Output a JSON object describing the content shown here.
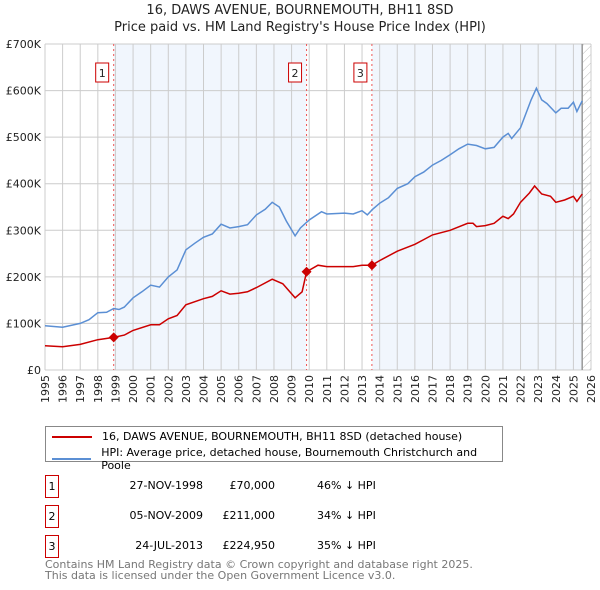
{
  "chart_data": {
    "type": "line",
    "title": "16, DAWS AVENUE, BOURNEMOUTH, BH11 8SD",
    "subtitle": "Price paid vs. HM Land Registry's House Price Index (HPI)",
    "xlim": [
      1995,
      2026
    ],
    "ylim": [
      0,
      700000
    ],
    "x_ticks": [
      "1995",
      "1996",
      "1997",
      "1998",
      "1999",
      "2000",
      "2001",
      "2002",
      "2003",
      "2004",
      "2005",
      "2006",
      "2007",
      "2008",
      "2009",
      "2010",
      "2011",
      "2012",
      "2013",
      "2014",
      "2015",
      "2016",
      "2017",
      "2018",
      "2019",
      "2020",
      "2021",
      "2022",
      "2023",
      "2024",
      "2025",
      "2026"
    ],
    "y_ticks": [
      {
        "v": 0,
        "label": "£0"
      },
      {
        "v": 100000,
        "label": "£100K"
      },
      {
        "v": 200000,
        "label": "£200K"
      },
      {
        "v": 300000,
        "label": "£300K"
      },
      {
        "v": 400000,
        "label": "£400K"
      },
      {
        "v": 500000,
        "label": "£500K"
      },
      {
        "v": 600000,
        "label": "£600K"
      },
      {
        "v": 700000,
        "label": "£700K"
      }
    ],
    "grid": true,
    "forecast_start": 2025.5,
    "series": [
      {
        "name": "16, DAWS AVENUE, BOURNEMOUTH, BH11 8SD (detached house)",
        "color": "#cc0000",
        "x": [
          1995,
          1996,
          1997,
          1998,
          1998.9,
          1999.5,
          2000,
          2001,
          2001.5,
          2002,
          2002.5,
          2003,
          2004,
          2004.5,
          2005,
          2005.5,
          2006,
          2006.5,
          2007,
          2007.9,
          2008.5,
          2009.2,
          2009.6,
          2009.85,
          2010.5,
          2011,
          2012,
          2012.5,
          2013,
          2013.56,
          2014,
          2015,
          2016,
          2016.5,
          2017,
          2018,
          2019,
          2019.3,
          2019.5,
          2020,
          2020.5,
          2021,
          2021.3,
          2021.6,
          2022,
          2022.5,
          2022.8,
          2023.2,
          2023.7,
          2024,
          2024.5,
          2025,
          2025.2,
          2025.5
        ],
        "y": [
          52000,
          50000,
          55000,
          65000,
          70000,
          75000,
          85000,
          97000,
          97000,
          110000,
          117000,
          140000,
          153000,
          158000,
          170000,
          163000,
          165000,
          168000,
          177000,
          195000,
          185000,
          155000,
          168000,
          211000,
          225000,
          222000,
          222000,
          222000,
          225000,
          224950,
          235000,
          255000,
          270000,
          280000,
          290000,
          300000,
          315000,
          315000,
          308000,
          310000,
          315000,
          330000,
          325000,
          335000,
          360000,
          380000,
          395000,
          378000,
          373000,
          360000,
          365000,
          373000,
          362000,
          378000
        ]
      },
      {
        "name": "HPI: Average price, detached house, Bournemouth Christchurch and Poole",
        "color": "#5b8fd4",
        "x": [
          1995,
          1996,
          1997,
          1997.5,
          1998,
          1998.5,
          1998.9,
          1999.2,
          1999.5,
          2000,
          2000.5,
          2001,
          2001.5,
          2002,
          2002.5,
          2003,
          2003.5,
          2004,
          2004.5,
          2005,
          2005.5,
          2006,
          2006.5,
          2007,
          2007.5,
          2007.9,
          2008.3,
          2008.7,
          2009.2,
          2009.5,
          2010,
          2010.7,
          2011,
          2012,
          2012.5,
          2013,
          2013.3,
          2013.6,
          2014,
          2014.5,
          2015,
          2015.6,
          2016,
          2016.5,
          2017,
          2017.5,
          2018,
          2018.5,
          2019,
          2019.5,
          2020,
          2020.5,
          2021,
          2021.3,
          2021.5,
          2022,
          2022.3,
          2022.6,
          2022.9,
          2023.2,
          2023.5,
          2024,
          2024.3,
          2024.7,
          2025,
          2025.2,
          2025.5
        ],
        "y": [
          95000,
          92000,
          100000,
          108000,
          123000,
          124000,
          132000,
          130000,
          135000,
          155000,
          168000,
          182000,
          178000,
          200000,
          215000,
          258000,
          272000,
          285000,
          292000,
          313000,
          305000,
          308000,
          312000,
          333000,
          345000,
          360000,
          350000,
          320000,
          288000,
          305000,
          322000,
          340000,
          335000,
          337000,
          335000,
          342000,
          333000,
          345000,
          358000,
          370000,
          390000,
          400000,
          415000,
          425000,
          440000,
          450000,
          462000,
          475000,
          485000,
          482000,
          475000,
          478000,
          500000,
          508000,
          497000,
          520000,
          550000,
          580000,
          605000,
          580000,
          572000,
          552000,
          562000,
          562000,
          575000,
          555000,
          578000
        ]
      }
    ],
    "sales": [
      {
        "id": "1",
        "x": 1998.9,
        "price": 70000,
        "date": "27-NOV-1998",
        "price_label": "£70,000",
        "hpi": "46% ↓ HPI"
      },
      {
        "id": "2",
        "x": 2009.85,
        "price": 211000,
        "date": "05-NOV-2009",
        "price_label": "£211,000",
        "hpi": "34% ↓ HPI"
      },
      {
        "id": "3",
        "x": 2013.56,
        "price": 224950,
        "date": "24-JUL-2013",
        "price_label": "£224,950",
        "hpi": "35% ↓ HPI"
      }
    ]
  },
  "legend": {
    "red": "16, DAWS AVENUE, BOURNEMOUTH, BH11 8SD (detached house)",
    "blue": "HPI: Average price, detached house, Bournemouth Christchurch and Poole"
  },
  "footer": {
    "line1": "Contains HM Land Registry data © Crown copyright and database right 2025.",
    "line2": "This data is licensed under the Open Government Licence v3.0."
  }
}
